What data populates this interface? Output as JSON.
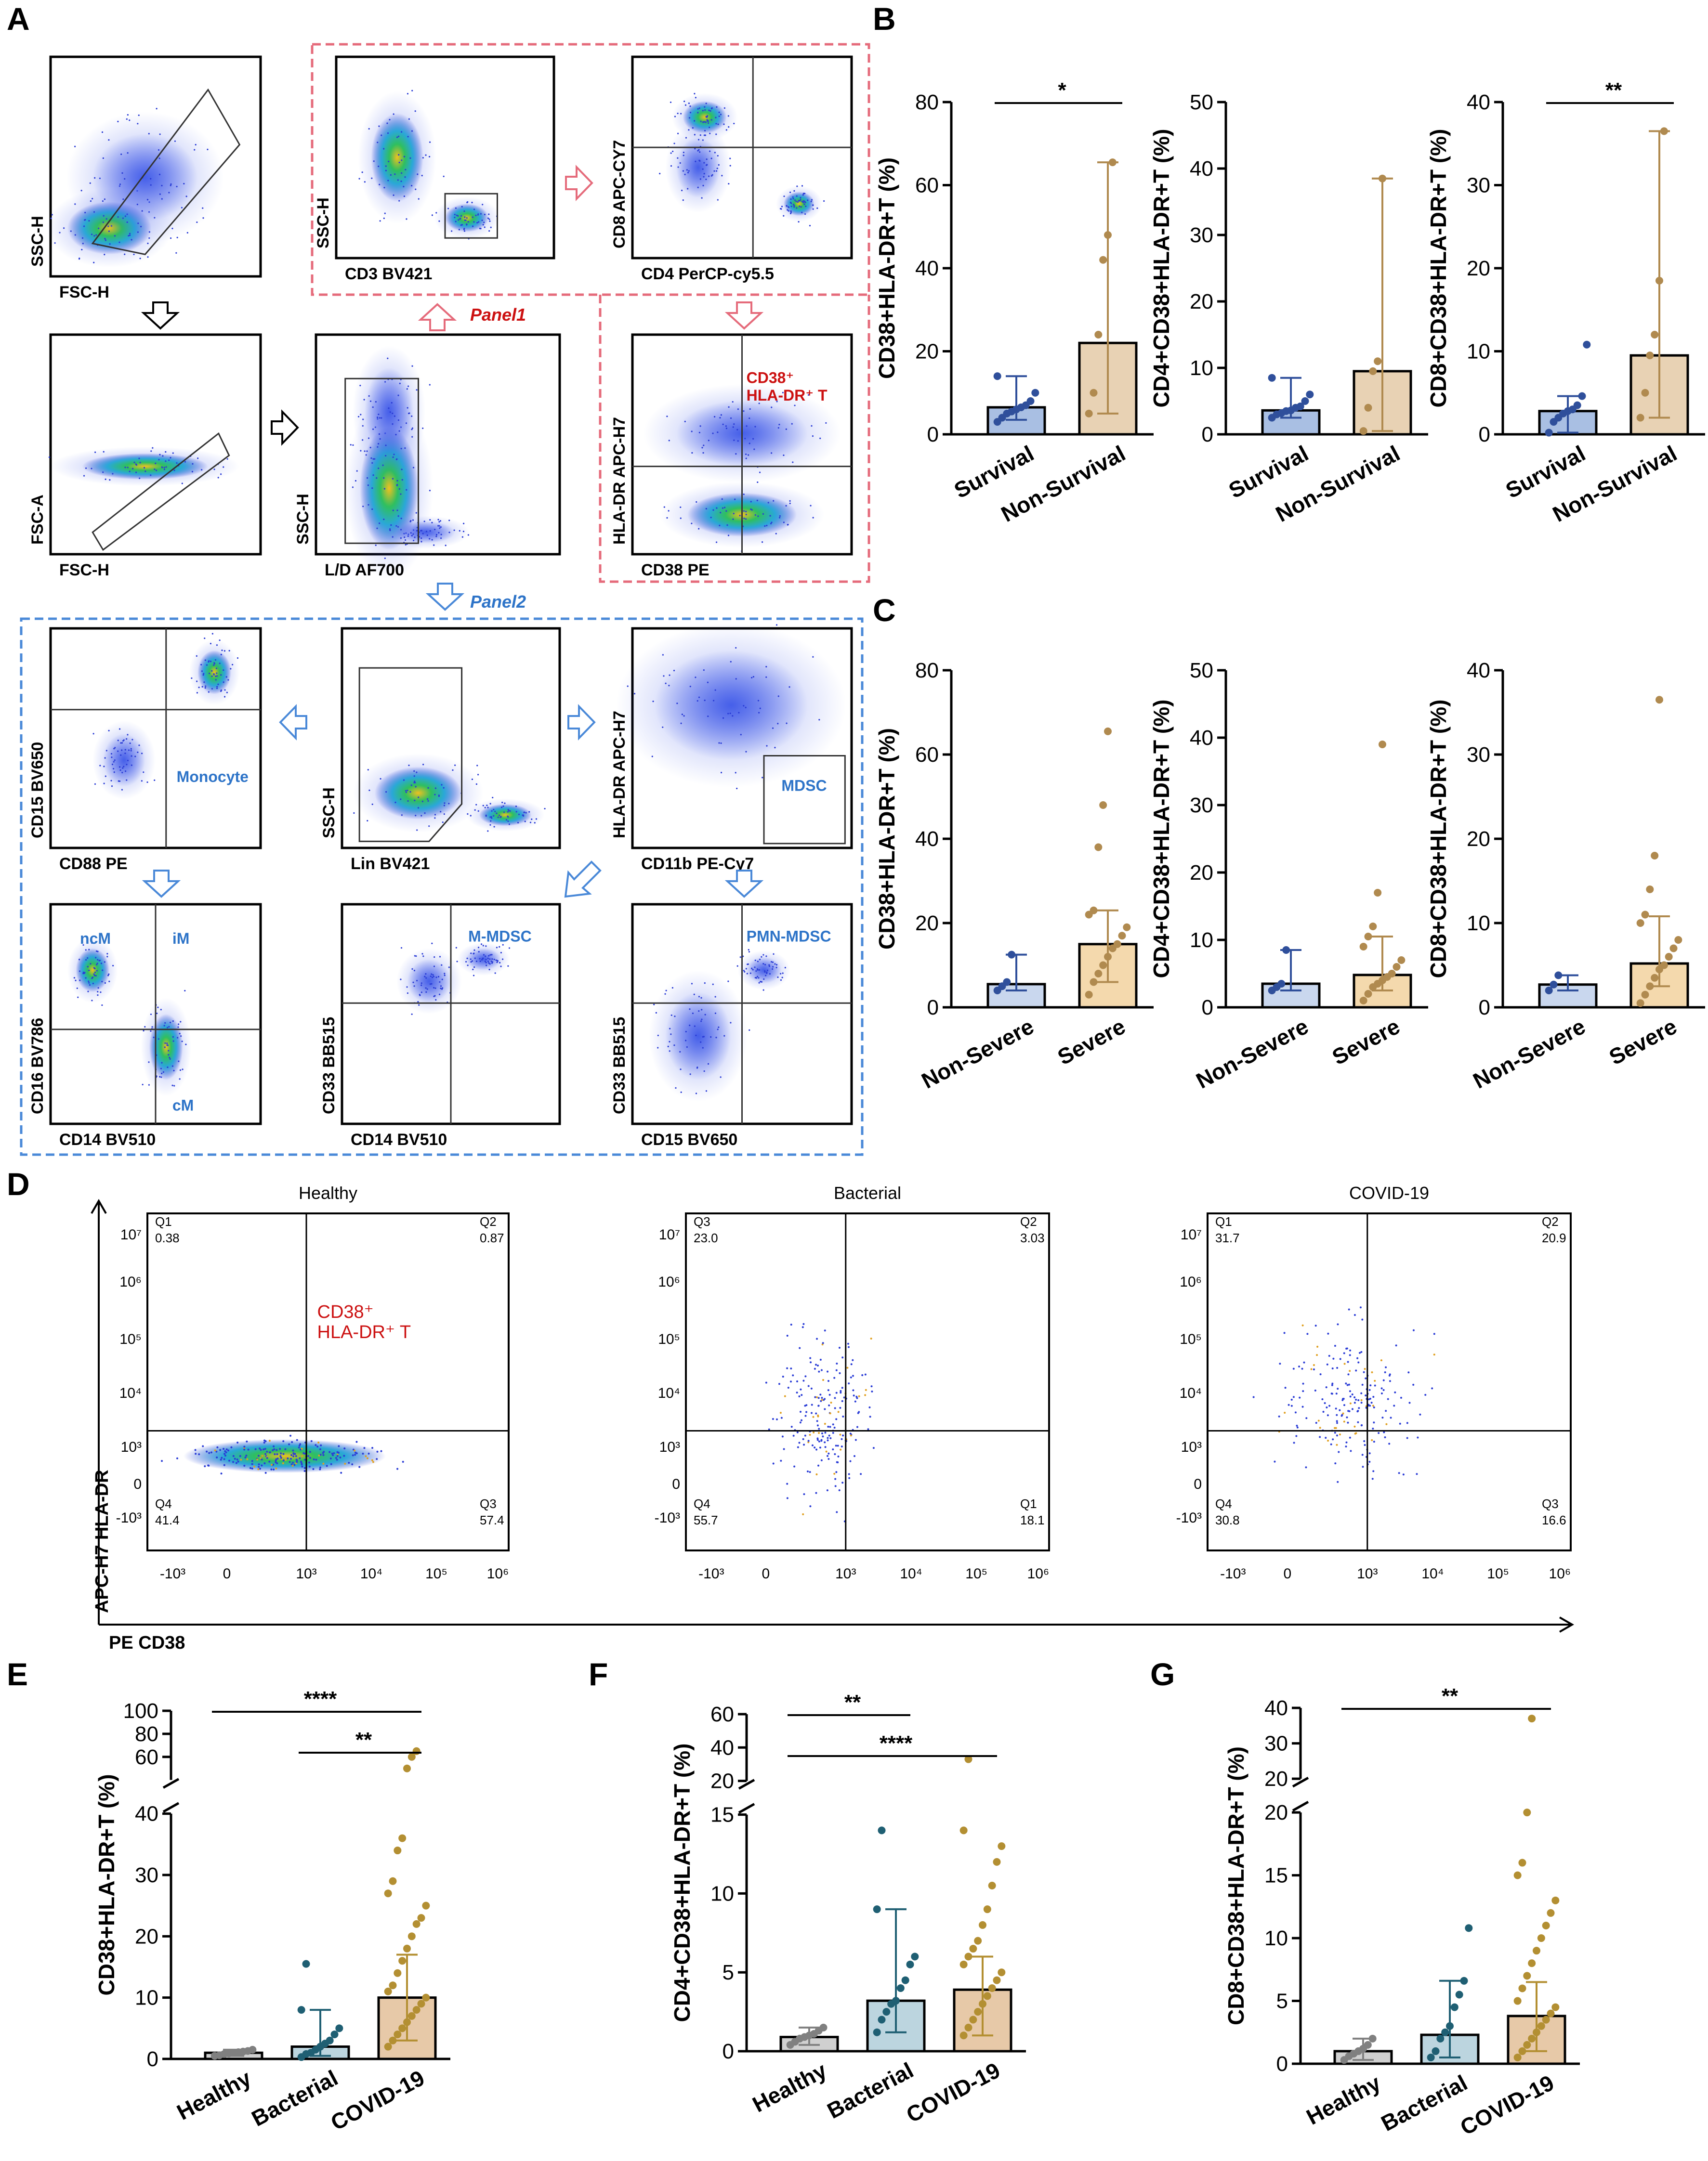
{
  "colors": {
    "survival_bar": "#a9bfe3",
    "survival_dot": "#2f4f9b",
    "nonsurvival_bar": "#e8d2b4",
    "nonsurvival_dot": "#b08a4f",
    "severe_bar": "#f4d9ad",
    "nonsevere_bar": "#c9d7ee",
    "healthy_bar": "#d0d0d0",
    "healthy_dot": "#808080",
    "bacterial_bar": "#bcd5df",
    "bacterial_dot": "#1f5f73",
    "covid_bar": "#e7c9a8",
    "covid_dot": "#b38f32",
    "panel1": "#e56b7b",
    "panel2": "#4a89d8",
    "red_label": "#cc1111",
    "blue_label": "#2e74c8"
  },
  "panel_letters": {
    "A": "A",
    "B": "B",
    "C": "C",
    "D": "D",
    "E": "E",
    "F": "F",
    "G": "G"
  },
  "panelA": {
    "panel1_label": "Panel1",
    "panel2_label": "Panel2",
    "plots": [
      {
        "id": "fsc-ssc",
        "ylabel": "SSC-H",
        "xlabel": "FSC-H"
      },
      {
        "id": "cd3",
        "ylabel": "SSC-H",
        "xlabel": "CD3  BV421"
      },
      {
        "id": "cd4cd8",
        "ylabel": "CD8  APC-CY7",
        "xlabel": "CD4  PerCP-cy5.5"
      },
      {
        "id": "singlets",
        "ylabel": "FSC-A",
        "xlabel": "FSC-H"
      },
      {
        "id": "live",
        "ylabel": "SSC-H",
        "xlabel": "L/D  AF700"
      },
      {
        "id": "cd38hla",
        "ylabel": "HLA-DR  APC-H7",
        "xlabel": "CD38 PE",
        "label1": "CD38⁺",
        "label2": "HLA-DR⁺ T"
      },
      {
        "id": "cd15cd88",
        "ylabel": "CD15 BV650",
        "xlabel": "CD88 PE",
        "label1": "Monocyte"
      },
      {
        "id": "lin",
        "ylabel": "SSC-H",
        "xlabel": "Lin  BV421"
      },
      {
        "id": "mdsc",
        "ylabel": "HLA-DR APC-H7",
        "xlabel": "CD11b PE-Cy7",
        "label1": "MDSC"
      },
      {
        "id": "cd16cd14",
        "ylabel": "CD16 BV786",
        "xlabel": "CD14 BV510",
        "label1": "ncM",
        "label2": "iM",
        "label3": "cM"
      },
      {
        "id": "mmdsc",
        "ylabel": "CD33 BB515",
        "xlabel": "CD14 BV510",
        "label1": "M-MDSC"
      },
      {
        "id": "pmn",
        "ylabel": "CD33 BB515",
        "xlabel": "CD15 BV650",
        "label1": "PMN-MDSC"
      }
    ]
  },
  "panelD": {
    "xaxis_label": "PE CD38",
    "yaxis_label": "APC-H7 HLA-DR",
    "y_ticks": [
      "10⁷",
      "10⁶",
      "10⁵",
      "10⁴",
      "10³",
      "0",
      "-10³"
    ],
    "x_ticks": [
      "-10³",
      "0",
      "10³",
      "10⁴",
      "10⁵",
      "10⁶"
    ],
    "plots": [
      {
        "title": "Healthy",
        "ul_name": "Q1",
        "ul_val": "0.38",
        "ur_name": "Q2",
        "ur_val": "0.87",
        "ll_name": "Q4",
        "ll_val": "41.4",
        "lr_name": "Q3",
        "lr_val": "57.4",
        "label1": "CD38⁺",
        "label2": "HLA-DR⁺ T"
      },
      {
        "title": "Bacterial",
        "ul_name": "Q3",
        "ul_val": "23.0",
        "ur_name": "Q2",
        "ur_val": "3.03",
        "ll_name": "Q4",
        "ll_val": "55.7",
        "lr_name": "Q1",
        "lr_val": "18.1"
      },
      {
        "title": "COVID-19",
        "ul_name": "Q1",
        "ul_val": "31.7",
        "ur_name": "Q2",
        "ur_val": "20.9",
        "ll_name": "Q4",
        "ll_val": "30.8",
        "lr_name": "Q3",
        "lr_val": "16.6"
      }
    ]
  },
  "chart_data": [
    {
      "id": "B1",
      "type": "bar",
      "ylabel": "CD38+HLA-DR+T (%)",
      "ylim": [
        0,
        80
      ],
      "yticks": [
        "0",
        "20",
        "40",
        "60",
        "80"
      ],
      "categories": [
        "Survival",
        "Non-Survival"
      ],
      "values": [
        6.5,
        22
      ],
      "err_low": [
        3.5,
        5
      ],
      "err_high": [
        14,
        65.5
      ],
      "points": [
        [
          3,
          4,
          5,
          5.5,
          6,
          6.5,
          7,
          8,
          10,
          14
        ],
        [
          5,
          10,
          24,
          42,
          48,
          65.5
        ]
      ],
      "sig": [
        {
          "from": 0,
          "to": 1,
          "label": "*"
        }
      ]
    },
    {
      "id": "B2",
      "type": "bar",
      "ylabel": "CD4+CD38+HLA-DR+T (%)",
      "ylim": [
        0,
        50
      ],
      "yticks": [
        "0",
        "10",
        "20",
        "30",
        "40",
        "50"
      ],
      "categories": [
        "Survival",
        "Non-Survival"
      ],
      "values": [
        3.6,
        9.5
      ],
      "err_low": [
        2.5,
        0.5
      ],
      "err_high": [
        8.5,
        38.5
      ],
      "points": [
        [
          2.5,
          3,
          3.2,
          3.5,
          3.6,
          4,
          4.2,
          5,
          6,
          8.5
        ],
        [
          0.5,
          4,
          9.5,
          11,
          38.5
        ]
      ],
      "sig": []
    },
    {
      "id": "B3",
      "type": "bar",
      "ylabel": "CD8+CD38+HLA-DR+T (%)",
      "ylim": [
        0,
        40
      ],
      "yticks": [
        "0",
        "10",
        "20",
        "30",
        "40"
      ],
      "categories": [
        "Survival",
        "Non-Survival"
      ],
      "values": [
        2.8,
        9.5
      ],
      "err_low": [
        0.2,
        2
      ],
      "err_high": [
        4.6,
        36.5
      ],
      "points": [
        [
          0.2,
          1.5,
          2,
          2.5,
          2.8,
          3,
          3.5,
          4.6,
          10.8
        ],
        [
          2,
          5,
          9.5,
          12,
          18.5,
          36.5
        ]
      ],
      "sig": [
        {
          "from": 0,
          "to": 1,
          "label": "**"
        }
      ]
    },
    {
      "id": "C1",
      "type": "bar",
      "ylabel": "CD38+HLA-DR+T (%)",
      "ylim": [
        0,
        80
      ],
      "yticks": [
        "0",
        "20",
        "40",
        "60",
        "80"
      ],
      "categories": [
        "Non-Severe",
        "Severe"
      ],
      "values": [
        5.5,
        15
      ],
      "err_low": [
        4,
        6
      ],
      "err_high": [
        12.5,
        23
      ],
      "points": [
        [
          4,
          5,
          6,
          12.5
        ],
        [
          3,
          6,
          8,
          10,
          12,
          14,
          15,
          17,
          19,
          22,
          23,
          38,
          48,
          65.5
        ]
      ],
      "sig": []
    },
    {
      "id": "C2",
      "type": "bar",
      "ylabel": "CD4+CD38+HLA-DR+T (%)",
      "ylim": [
        0,
        50
      ],
      "yticks": [
        "0",
        "10",
        "20",
        "30",
        "40",
        "50"
      ],
      "categories": [
        "Non-Severe",
        "Severe"
      ],
      "values": [
        3.5,
        4.8
      ],
      "err_low": [
        2.5,
        2.5
      ],
      "err_high": [
        8.5,
        10.5
      ],
      "points": [
        [
          2.5,
          3,
          3.5,
          8.5
        ],
        [
          1,
          2,
          3,
          3.5,
          4,
          4.5,
          5,
          6,
          7,
          9,
          10.5,
          12,
          17,
          39
        ]
      ],
      "sig": []
    },
    {
      "id": "C3",
      "type": "bar",
      "ylabel": "CD8+CD38+HLA-DR+T (%)",
      "ylim": [
        0,
        40
      ],
      "yticks": [
        "0",
        "10",
        "20",
        "30",
        "40"
      ],
      "categories": [
        "Non-Severe",
        "Severe"
      ],
      "values": [
        2.7,
        5.2
      ],
      "err_low": [
        2,
        2.5
      ],
      "err_high": [
        3.8,
        10.8
      ],
      "points": [
        [
          2,
          2.7,
          3.8
        ],
        [
          0.5,
          1.5,
          2.5,
          3.5,
          4.5,
          5,
          6,
          7,
          8,
          10,
          11,
          14,
          18,
          36.5
        ]
      ],
      "sig": []
    },
    {
      "id": "E",
      "type": "bar",
      "ylabel": "CD38+HLA-DR+T (%)",
      "ylim": [
        0,
        100
      ],
      "axis_break": [
        40,
        40
      ],
      "yticks": [
        "0",
        "10",
        "20",
        "30",
        "40",
        "60",
        "80",
        "100"
      ],
      "categories": [
        "Healthy",
        "Bacterial",
        "COVID-19"
      ],
      "values": [
        1,
        2,
        10
      ],
      "err_low": [
        0.5,
        0.5,
        3
      ],
      "err_high": [
        1.5,
        8,
        17
      ],
      "points": [
        [
          0.5,
          0.6,
          0.8,
          0.9,
          1,
          1.1,
          1.2,
          1.3,
          1.5
        ],
        [
          0.3,
          0.8,
          1,
          1.5,
          2,
          2.5,
          3,
          4,
          5,
          8,
          15.5
        ],
        [
          2,
          3,
          4,
          5,
          6,
          7,
          8,
          9,
          10,
          11,
          12,
          14,
          16,
          18,
          20,
          22,
          23,
          25,
          27,
          29,
          34,
          36,
          50,
          60,
          65
        ]
      ],
      "sig": [
        {
          "from": 0,
          "to": 2,
          "label": "****"
        },
        {
          "from": 1,
          "to": 2,
          "label": "**"
        }
      ]
    },
    {
      "id": "F",
      "type": "bar",
      "ylabel": "CD4+CD38+HLA-DR+T (%)",
      "ylim": [
        0,
        60
      ],
      "axis_break": [
        15,
        20
      ],
      "yticks": [
        "0",
        "5",
        "10",
        "15",
        "20",
        "40",
        "60"
      ],
      "categories": [
        "Healthy",
        "Bacterial",
        "COVID-19"
      ],
      "values": [
        0.9,
        3.2,
        3.9
      ],
      "err_low": [
        0.4,
        1.2,
        1
      ],
      "err_high": [
        1.5,
        9,
        6
      ],
      "points": [
        [
          0.4,
          0.6,
          0.8,
          0.9,
          1,
          1.1,
          1.3,
          1.5
        ],
        [
          1.2,
          2,
          2.5,
          3,
          3.2,
          4,
          4.5,
          5.5,
          6,
          9,
          14
        ],
        [
          1,
          1.5,
          2,
          2.5,
          3,
          3.5,
          4,
          4.5,
          5,
          5.5,
          6,
          6.5,
          7,
          8,
          9,
          10.5,
          12,
          13,
          14,
          33
        ]
      ],
      "sig": [
        {
          "from": 0,
          "to": 1,
          "label": "**"
        },
        {
          "from": 0,
          "to": 2,
          "label": "****"
        }
      ]
    },
    {
      "id": "G",
      "type": "bar",
      "ylabel": "CD8+CD38+HLA-DR+T (%)",
      "ylim": [
        0,
        40
      ],
      "axis_break": [
        20,
        20
      ],
      "yticks": [
        "0",
        "5",
        "10",
        "15",
        "20",
        "20",
        "30",
        "40"
      ],
      "categories": [
        "Healthy",
        "Bacterial",
        "COVID-19"
      ],
      "values": [
        1,
        2.3,
        3.8
      ],
      "err_low": [
        0.3,
        0.5,
        1
      ],
      "err_high": [
        2,
        6.6,
        6.5
      ],
      "points": [
        [
          0.3,
          0.6,
          0.8,
          1,
          1.2,
          1.5,
          2
        ],
        [
          0.5,
          1,
          2,
          2.5,
          3,
          4.5,
          5.5,
          6.6,
          10.8
        ],
        [
          0.5,
          1,
          1.5,
          2,
          2.5,
          3,
          3.5,
          4,
          4.5,
          5,
          6,
          7,
          8,
          9,
          10,
          11,
          12,
          13,
          15,
          16,
          20,
          37
        ]
      ],
      "sig": [
        {
          "from": 0,
          "to": 2,
          "label": "**"
        }
      ]
    }
  ]
}
